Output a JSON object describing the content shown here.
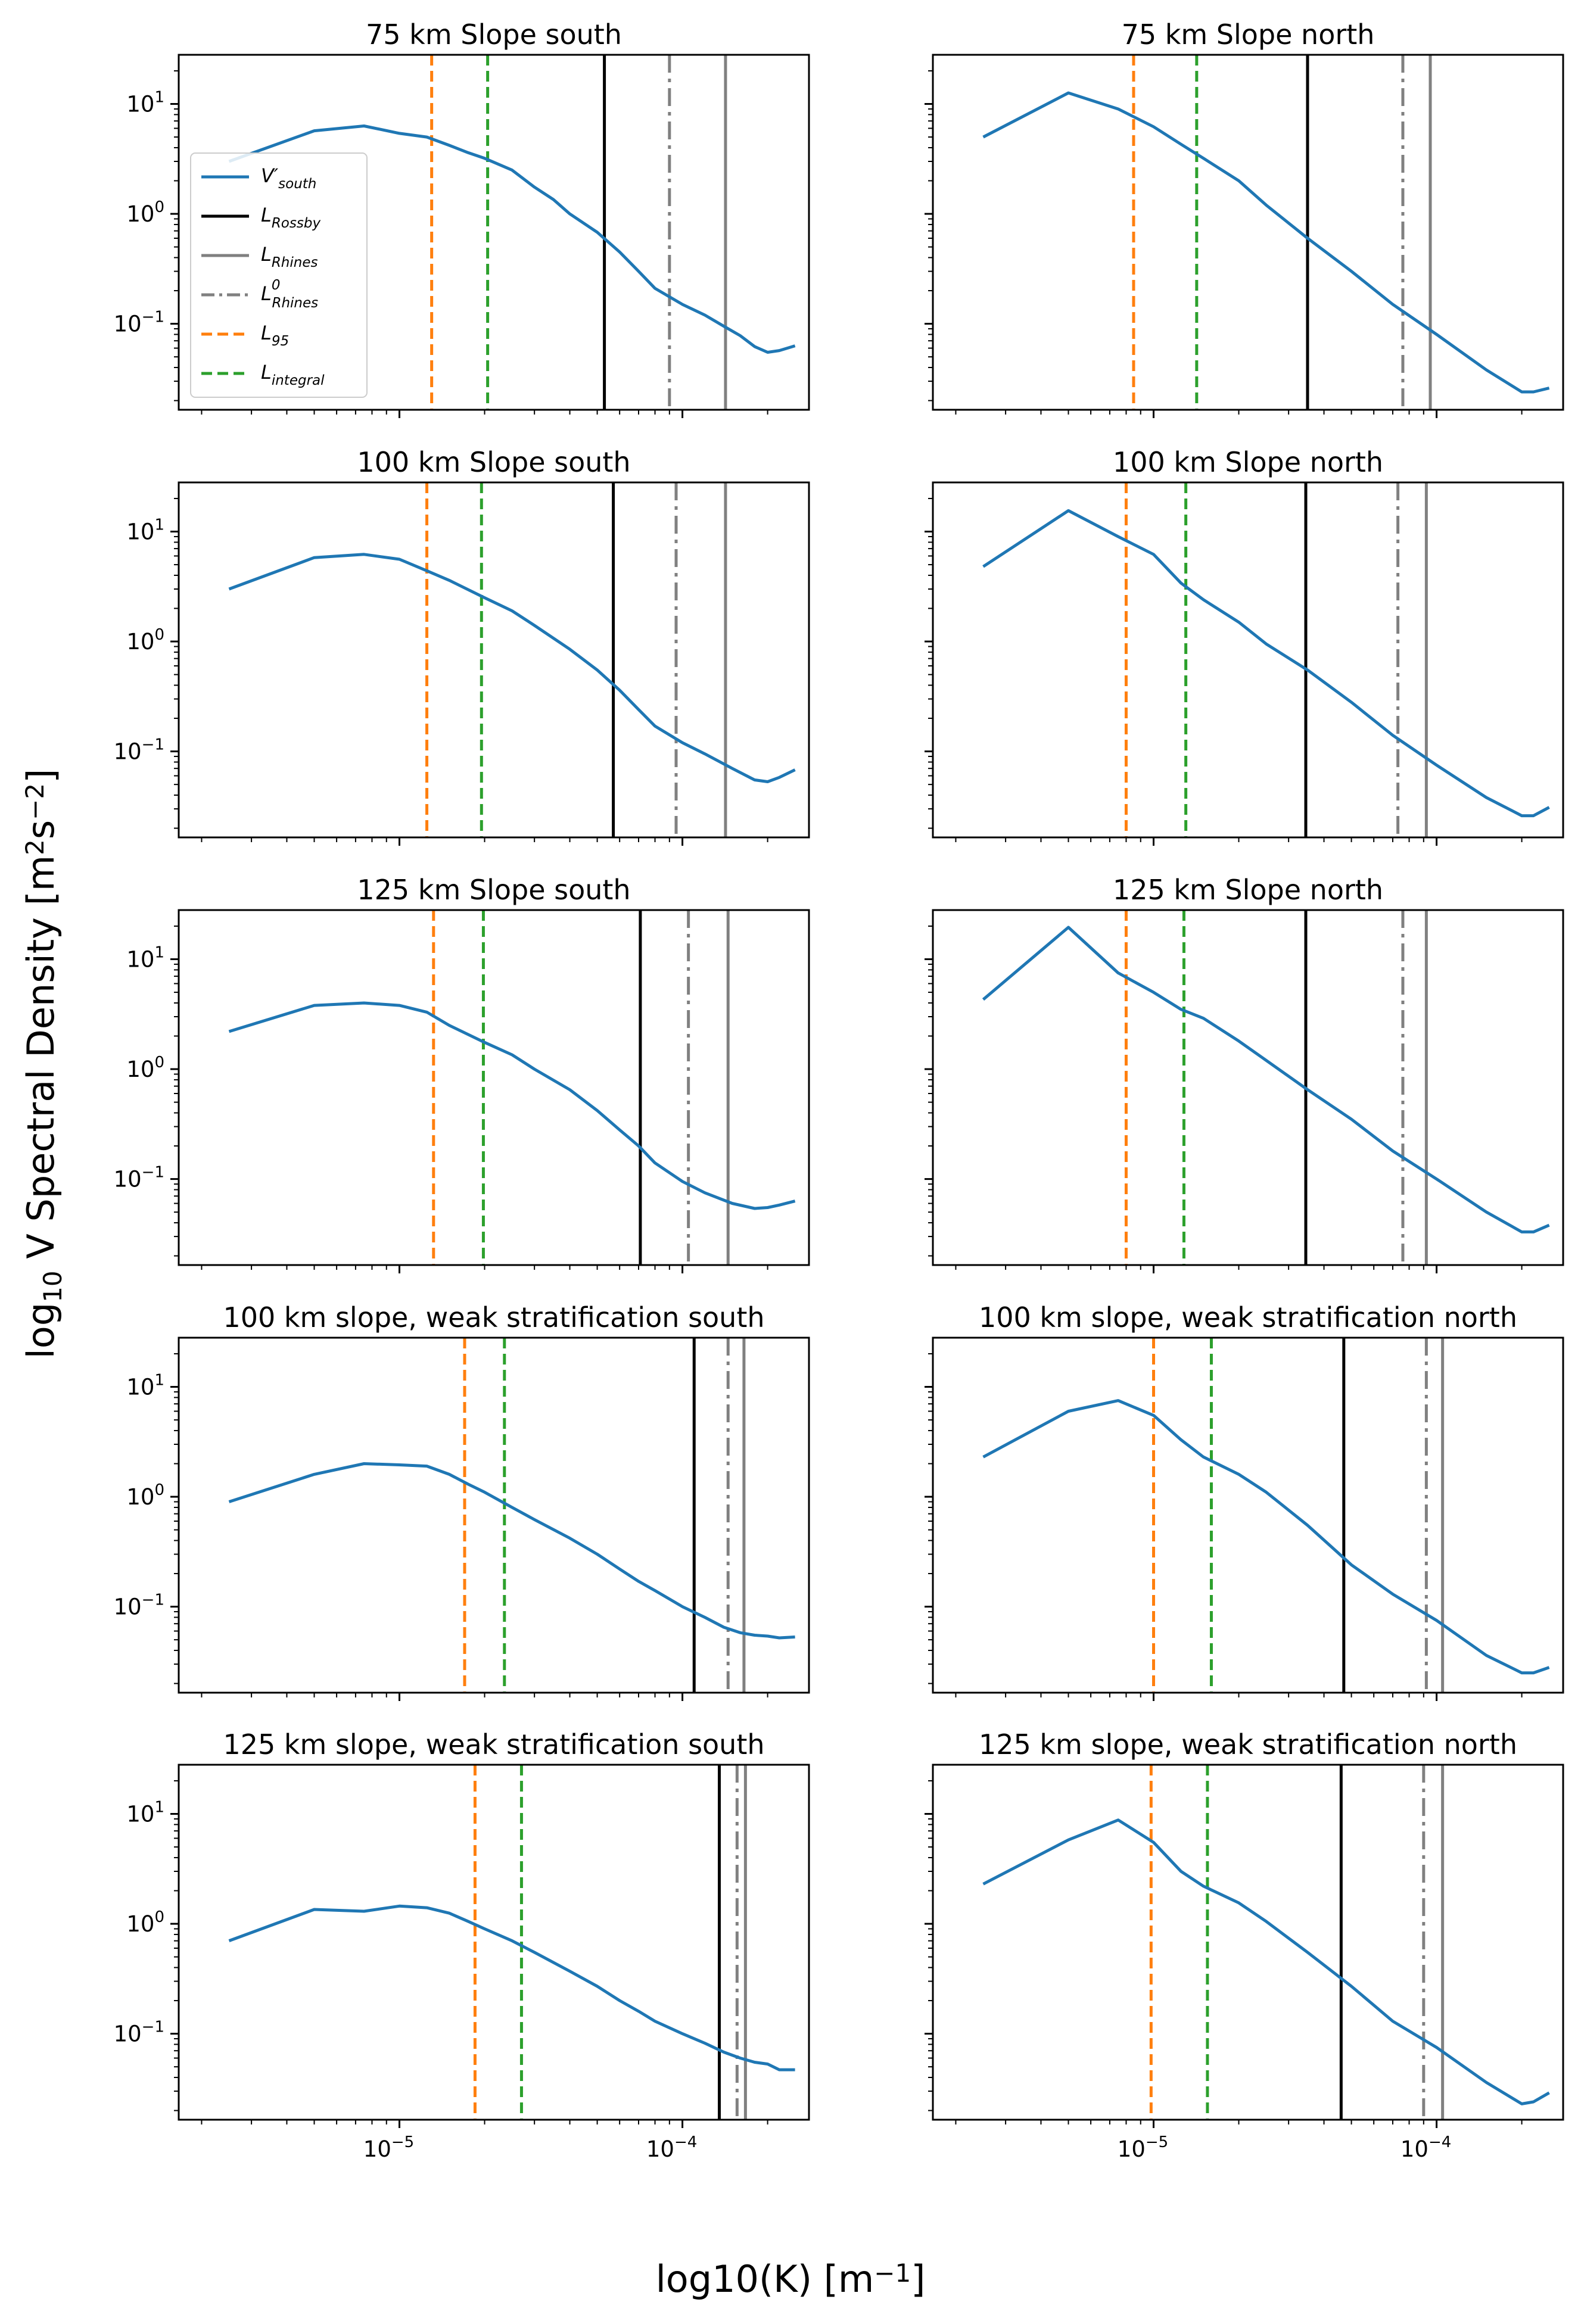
{
  "figure": {
    "ylabel_base": "log",
    "ylabel_sub": "10",
    "ylabel_main": " V Spectral Density [m",
    "ylabel_sup1": "2",
    "ylabel_mid": "s",
    "ylabel_sup2": "−2",
    "ylabel_end": "]",
    "xlabel_main": "log10(K) [m",
    "xlabel_sup": "−1",
    "xlabel_end": "]"
  },
  "legend": {
    "items": [
      {
        "base": "V′",
        "sub": "south",
        "style": "solid",
        "color": "#1f77b4"
      },
      {
        "base": "L",
        "sub": "Rossby",
        "style": "solid",
        "color": "#000000"
      },
      {
        "base": "L",
        "sub": "Rhines",
        "style": "solid",
        "color": "#808080"
      },
      {
        "base": "L",
        "sub": "Rhines",
        "sup": "0",
        "style": "dashdot",
        "color": "#808080"
      },
      {
        "base": "L",
        "sub": "95",
        "style": "dashed",
        "color": "#ff7f0e"
      },
      {
        "base": "L",
        "sub": "integral",
        "style": "dashed",
        "color": "#2ca02c"
      }
    ]
  },
  "colors": {
    "series": "#1f77b4",
    "rossby": "#000000",
    "rhines": "#808080",
    "rhines0": "#808080",
    "l95": "#ff7f0e",
    "lintegral": "#2ca02c"
  },
  "chart_data": [
    {
      "type": "line",
      "title": "75 km Slope south",
      "xscale": "log",
      "yscale": "log",
      "xlim": [
        1.66e-06,
        0.00028
      ],
      "ylim": [
        0.0165,
        28
      ],
      "x": [
        2.5e-06,
        5e-06,
        7.5e-06,
        1e-05,
        1.25e-05,
        1.5e-05,
        1.75e-05,
        2e-05,
        2.5e-05,
        3e-05,
        3.5e-05,
        4e-05,
        5e-05,
        6e-05,
        7e-05,
        8e-05,
        0.0001,
        0.00012,
        0.00014,
        0.00016,
        0.00018,
        0.0002,
        0.00022,
        0.00025
      ],
      "y": [
        3.0,
        5.7,
        6.3,
        5.4,
        5.0,
        4.2,
        3.6,
        3.2,
        2.5,
        1.75,
        1.35,
        1.0,
        0.68,
        0.45,
        0.3,
        0.21,
        0.15,
        0.12,
        0.095,
        0.078,
        0.062,
        0.055,
        0.057,
        0.063
      ],
      "lines": {
        "rossby": 5.3e-05,
        "rhines": 0.000142,
        "rhines0": 9e-05,
        "l95": 1.3e-05,
        "lintegral": 2.05e-05
      },
      "yticks": [
        {
          "base": "10",
          "exp": "1"
        },
        {
          "base": "10",
          "exp": "0"
        },
        {
          "base": "10",
          "exp": "−1"
        }
      ],
      "show_legend": true
    },
    {
      "type": "line",
      "title": "75 km Slope north",
      "xscale": "log",
      "yscale": "log",
      "xlim": [
        1.66e-06,
        0.00028
      ],
      "ylim": [
        0.0165,
        28
      ],
      "x": [
        2.5e-06,
        5e-06,
        7.5e-06,
        1e-05,
        1.25e-05,
        1.5e-05,
        2e-05,
        2.5e-05,
        3.5e-05,
        5e-05,
        7e-05,
        0.0001,
        0.00015,
        0.0002,
        0.00022,
        0.00025
      ],
      "y": [
        5.0,
        12.6,
        9.0,
        6.2,
        4.3,
        3.2,
        2.0,
        1.2,
        0.6,
        0.3,
        0.15,
        0.08,
        0.038,
        0.024,
        0.024,
        0.026
      ],
      "lines": {
        "rossby": 3.5e-05,
        "rhines": 9.5e-05,
        "rhines0": 7.6e-05,
        "l95": 8.5e-06,
        "lintegral": 1.42e-05
      },
      "yticks": [],
      "show_legend": false
    },
    {
      "type": "line",
      "title": "100 km Slope south",
      "xscale": "log",
      "yscale": "log",
      "xlim": [
        1.66e-06,
        0.00028
      ],
      "ylim": [
        0.0165,
        28
      ],
      "x": [
        2.5e-06,
        5e-06,
        7.5e-06,
        1e-05,
        1.25e-05,
        1.5e-05,
        2e-05,
        2.5e-05,
        3e-05,
        4e-05,
        5e-05,
        6e-05,
        7e-05,
        8e-05,
        0.0001,
        0.00012,
        0.00015,
        0.00018,
        0.0002,
        0.00022,
        0.00025
      ],
      "y": [
        3.0,
        5.8,
        6.2,
        5.6,
        4.4,
        3.6,
        2.5,
        1.9,
        1.4,
        0.85,
        0.55,
        0.36,
        0.24,
        0.17,
        0.12,
        0.095,
        0.07,
        0.055,
        0.053,
        0.058,
        0.068
      ],
      "lines": {
        "rossby": 5.7e-05,
        "rhines": 0.000142,
        "rhines0": 9.5e-05,
        "l95": 1.25e-05,
        "lintegral": 1.95e-05
      },
      "yticks": [
        {
          "base": "10",
          "exp": "1"
        },
        {
          "base": "10",
          "exp": "0"
        },
        {
          "base": "10",
          "exp": "−1"
        }
      ],
      "show_legend": false
    },
    {
      "type": "line",
      "title": "100 km Slope north",
      "xscale": "log",
      "yscale": "log",
      "xlim": [
        1.66e-06,
        0.00028
      ],
      "ylim": [
        0.0165,
        28
      ],
      "x": [
        2.5e-06,
        5e-06,
        7.5e-06,
        1e-05,
        1.25e-05,
        1.5e-05,
        2e-05,
        2.5e-05,
        3.5e-05,
        5e-05,
        7e-05,
        0.0001,
        0.00015,
        0.0002,
        0.00022,
        0.00025
      ],
      "y": [
        4.8,
        15.5,
        9.0,
        6.2,
        3.4,
        2.4,
        1.5,
        0.95,
        0.55,
        0.28,
        0.14,
        0.075,
        0.038,
        0.026,
        0.026,
        0.031
      ],
      "lines": {
        "rossby": 3.45e-05,
        "rhines": 9.2e-05,
        "rhines0": 7.3e-05,
        "l95": 8e-06,
        "lintegral": 1.3e-05
      },
      "yticks": [],
      "show_legend": false
    },
    {
      "type": "line",
      "title": "125 km Slope south",
      "xscale": "log",
      "yscale": "log",
      "xlim": [
        1.66e-06,
        0.00028
      ],
      "ylim": [
        0.0165,
        28
      ],
      "x": [
        2.5e-06,
        5e-06,
        7.5e-06,
        1e-05,
        1.25e-05,
        1.5e-05,
        2e-05,
        2.5e-05,
        3e-05,
        4e-05,
        5e-05,
        6e-05,
        7e-05,
        8e-05,
        0.0001,
        0.00012,
        0.00015,
        0.00018,
        0.0002,
        0.00022,
        0.00025
      ],
      "y": [
        2.2,
        3.8,
        4.0,
        3.8,
        3.3,
        2.5,
        1.75,
        1.35,
        1.0,
        0.65,
        0.42,
        0.28,
        0.2,
        0.14,
        0.095,
        0.075,
        0.06,
        0.054,
        0.055,
        0.058,
        0.063
      ],
      "lines": {
        "rossby": 7.1e-05,
        "rhines": 0.000145,
        "rhines0": 0.000105,
        "l95": 1.32e-05,
        "lintegral": 1.98e-05
      },
      "yticks": [
        {
          "base": "10",
          "exp": "1"
        },
        {
          "base": "10",
          "exp": "0"
        },
        {
          "base": "10",
          "exp": "−1"
        }
      ],
      "show_legend": false
    },
    {
      "type": "line",
      "title": "125 km Slope north",
      "xscale": "log",
      "yscale": "log",
      "xlim": [
        1.66e-06,
        0.00028
      ],
      "ylim": [
        0.0165,
        28
      ],
      "x": [
        2.5e-06,
        5e-06,
        7.5e-06,
        1e-05,
        1.25e-05,
        1.5e-05,
        2e-05,
        2.5e-05,
        3.5e-05,
        5e-05,
        7e-05,
        0.0001,
        0.00015,
        0.0002,
        0.00022,
        0.00025
      ],
      "y": [
        4.3,
        19.5,
        7.5,
        5.0,
        3.5,
        2.9,
        1.8,
        1.2,
        0.65,
        0.35,
        0.18,
        0.1,
        0.05,
        0.033,
        0.033,
        0.038
      ],
      "lines": {
        "rossby": 3.45e-05,
        "rhines": 9.2e-05,
        "rhines0": 7.6e-05,
        "l95": 8e-06,
        "lintegral": 1.28e-05
      },
      "yticks": [],
      "show_legend": false
    },
    {
      "type": "line",
      "title": "100 km slope, weak stratification south",
      "xscale": "log",
      "yscale": "log",
      "xlim": [
        1.66e-06,
        0.00028
      ],
      "ylim": [
        0.0165,
        28
      ],
      "x": [
        2.5e-06,
        5e-06,
        7.5e-06,
        1e-05,
        1.25e-05,
        1.5e-05,
        1.75e-05,
        2e-05,
        2.5e-05,
        3e-05,
        4e-05,
        5e-05,
        6e-05,
        7e-05,
        8e-05,
        0.0001,
        0.00012,
        0.00014,
        0.00016,
        0.00018,
        0.0002,
        0.00022,
        0.00025
      ],
      "y": [
        0.9,
        1.6,
        2.0,
        1.95,
        1.9,
        1.6,
        1.3,
        1.1,
        0.8,
        0.62,
        0.42,
        0.3,
        0.22,
        0.17,
        0.14,
        0.1,
        0.08,
        0.065,
        0.058,
        0.055,
        0.054,
        0.052,
        0.053
      ],
      "lines": {
        "rossby": 0.00011,
        "rhines": 0.000165,
        "rhines0": 0.000145,
        "l95": 1.7e-05,
        "lintegral": 2.35e-05
      },
      "yticks": [
        {
          "base": "10",
          "exp": "1"
        },
        {
          "base": "10",
          "exp": "0"
        },
        {
          "base": "10",
          "exp": "−1"
        }
      ],
      "show_legend": false
    },
    {
      "type": "line",
      "title": "100 km slope, weak stratification north",
      "xscale": "log",
      "yscale": "log",
      "xlim": [
        1.66e-06,
        0.00028
      ],
      "ylim": [
        0.0165,
        28
      ],
      "x": [
        2.5e-06,
        5e-06,
        7.5e-06,
        1e-05,
        1.25e-05,
        1.5e-05,
        2e-05,
        2.5e-05,
        3.5e-05,
        5e-05,
        7e-05,
        0.0001,
        0.00015,
        0.0002,
        0.00022,
        0.00025
      ],
      "y": [
        2.3,
        6.0,
        7.5,
        5.5,
        3.3,
        2.3,
        1.6,
        1.1,
        0.55,
        0.24,
        0.13,
        0.075,
        0.036,
        0.025,
        0.025,
        0.028
      ],
      "lines": {
        "rossby": 4.7e-05,
        "rhines": 0.000105,
        "rhines0": 9.2e-05,
        "l95": 1e-05,
        "lintegral": 1.6e-05
      },
      "yticks": [],
      "show_legend": false
    },
    {
      "type": "line",
      "title": "125 km slope, weak stratification south",
      "xscale": "log",
      "yscale": "log",
      "xlim": [
        1.66e-06,
        0.00028
      ],
      "ylim": [
        0.0165,
        28
      ],
      "x": [
        2.5e-06,
        5e-06,
        7.5e-06,
        1e-05,
        1.25e-05,
        1.5e-05,
        1.75e-05,
        2e-05,
        2.5e-05,
        3e-05,
        4e-05,
        5e-05,
        6e-05,
        7e-05,
        8e-05,
        0.0001,
        0.00012,
        0.00014,
        0.00016,
        0.00018,
        0.0002,
        0.00022,
        0.00025
      ],
      "y": [
        0.7,
        1.35,
        1.3,
        1.45,
        1.4,
        1.25,
        1.05,
        0.9,
        0.7,
        0.55,
        0.37,
        0.27,
        0.2,
        0.16,
        0.13,
        0.1,
        0.082,
        0.068,
        0.06,
        0.055,
        0.053,
        0.047,
        0.047
      ],
      "lines": {
        "rossby": 0.000135,
        "rhines": 0.000167,
        "rhines0": 0.000156,
        "l95": 1.85e-05,
        "lintegral": 2.7e-05
      },
      "yticks": [
        {
          "base": "10",
          "exp": "1"
        },
        {
          "base": "10",
          "exp": "0"
        },
        {
          "base": "10",
          "exp": "−1"
        }
      ],
      "show_legend": false
    },
    {
      "type": "line",
      "title": "125 km slope, weak stratification north",
      "xscale": "log",
      "yscale": "log",
      "xlim": [
        1.66e-06,
        0.00028
      ],
      "ylim": [
        0.0165,
        28
      ],
      "x": [
        2.5e-06,
        5e-06,
        7.5e-06,
        1e-05,
        1.25e-05,
        1.5e-05,
        2e-05,
        2.5e-05,
        3.5e-05,
        5e-05,
        7e-05,
        0.0001,
        0.00015,
        0.0002,
        0.00022,
        0.00025
      ],
      "y": [
        2.3,
        5.8,
        8.8,
        5.5,
        3.0,
        2.2,
        1.55,
        1.05,
        0.55,
        0.27,
        0.13,
        0.075,
        0.036,
        0.023,
        0.024,
        0.029
      ],
      "lines": {
        "rossby": 4.6e-05,
        "rhines": 0.000105,
        "rhines0": 9e-05,
        "l95": 9.8e-06,
        "lintegral": 1.55e-05
      },
      "yticks": [],
      "show_legend": false
    }
  ],
  "xticks": [
    {
      "base": "10",
      "exp": "−5",
      "value": 1e-05
    },
    {
      "base": "10",
      "exp": "−4",
      "value": 0.0001
    }
  ]
}
